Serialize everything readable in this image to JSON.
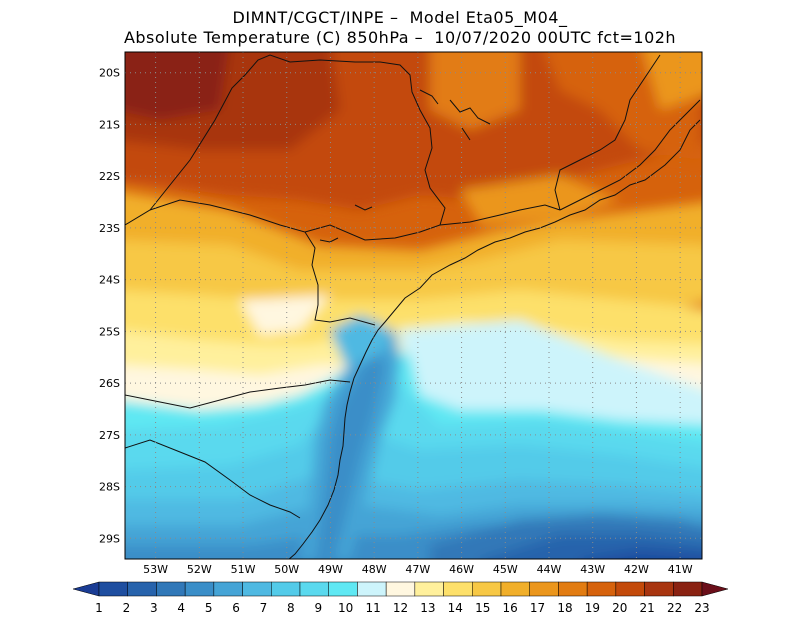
{
  "title": {
    "line1": "DIMNT/CGCT/INPE –  Model Eta05_M04_",
    "line2": "Absolute Temperature (C) 850hPa –  10/07/2020 00UTC fct=102h"
  },
  "map": {
    "lon_range": [
      -53.7,
      -40.5
    ],
    "lat_range": [
      -29.4,
      -19.6
    ],
    "lat_ticks": [
      "20S",
      "21S",
      "22S",
      "23S",
      "24S",
      "25S",
      "26S",
      "27S",
      "28S",
      "29S"
    ],
    "lon_ticks": [
      "53W",
      "52W",
      "51W",
      "50W",
      "49W",
      "48W",
      "47W",
      "46W",
      "45W",
      "44W",
      "43W",
      "42W",
      "41W"
    ],
    "grid": "dotted",
    "field": "Absolute Temperature (C) 850hPa"
  },
  "colorbar": {
    "labels": [
      "1",
      "2",
      "3",
      "4",
      "5",
      "6",
      "7",
      "8",
      "9",
      "10",
      "11",
      "12",
      "13",
      "14",
      "15",
      "16",
      "17",
      "18",
      "19",
      "20",
      "21",
      "22",
      "23"
    ],
    "colors": [
      "#1a3c94",
      "#1e4ea0",
      "#2763ac",
      "#3178b8",
      "#3a8ec8",
      "#45a4d6",
      "#4fb9e2",
      "#53cbe9",
      "#5ad9ee",
      "#5fe8f3",
      "#cdf4fb",
      "#fff7e0",
      "#fff09c",
      "#fde06a",
      "#f7c845",
      "#f1af2a",
      "#eb961c",
      "#e27c12",
      "#d6620c",
      "#c34a0a",
      "#a83510",
      "#8a2212",
      "#6b0f1a"
    ],
    "extend": "both"
  }
}
